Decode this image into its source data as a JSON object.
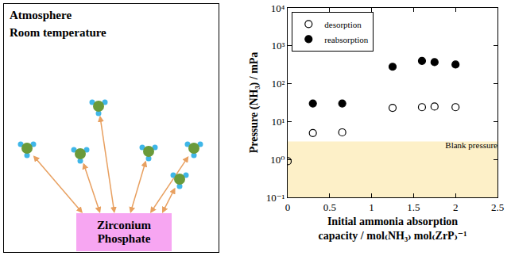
{
  "diagram": {
    "texts": [
      "Atmosphere",
      "Room temperature"
    ],
    "box_label": "Zirconium Phosphate"
  },
  "chart_data": {
    "type": "scatter",
    "x_label": "Initial ammonia absorption\ncapacity / mol₍NH₃₎ mol₍ZrP₎⁻¹",
    "y_label": "Pressure (NH₃) / mPa",
    "log": "y",
    "legend": "upper left",
    "series": [
      {
        "name": "desorption",
        "marker": "open circle",
        "color": "#000000",
        "x": [
          0,
          0.3,
          0.65,
          1.25,
          1.6,
          1.75,
          2.0
        ],
        "values": [
          0.9,
          5,
          5.2,
          23,
          24,
          25,
          24
        ]
      },
      {
        "name": "reabsorption",
        "marker": "filled circle",
        "color": "#000000",
        "x": [
          0.3,
          0.65,
          1.25,
          1.6,
          1.75,
          2.0
        ],
        "values": [
          30,
          30,
          280,
          400,
          370,
          320
        ]
      }
    ],
    "blank_region": {
      "label": "Blank pressure",
      "from": 0.1,
      "to": 3,
      "color": "#fdf0c8"
    },
    "xlim": [
      0,
      2.5
    ],
    "xticks": [
      0,
      0.5,
      1,
      1.5,
      2,
      2.5
    ],
    "ylim": [
      0.1,
      10000
    ],
    "yticks": [
      {
        "value": 0.1,
        "label": "10⁻¹"
      },
      {
        "value": 1,
        "label": "10⁰"
      },
      {
        "value": 10,
        "label": "10¹"
      },
      {
        "value": 100,
        "label": "10²"
      },
      {
        "value": 1000,
        "label": "10³"
      },
      {
        "value": 10000,
        "label": "10⁴"
      }
    ],
    "grid": false
  }
}
